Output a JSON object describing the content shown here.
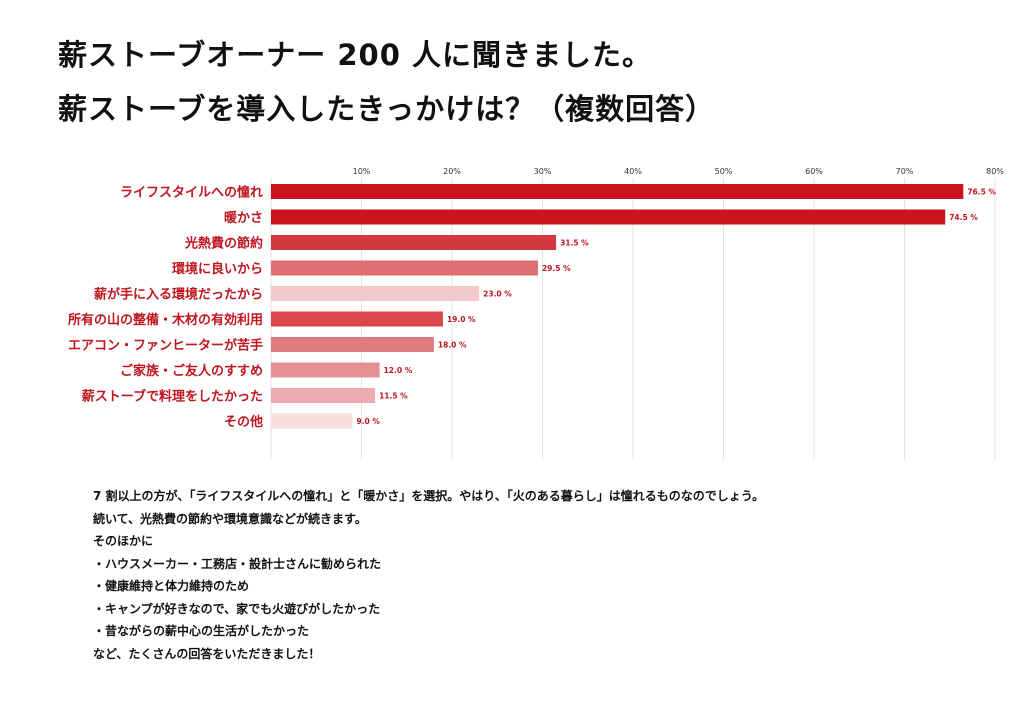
{
  "title": {
    "line1": "薪ストーブオーナー 200 人に聞きました。",
    "line2": "薪ストーブを導入したきっかけは？（複数回答）"
  },
  "chart_data": {
    "type": "bar",
    "orientation": "horizontal",
    "categories": [
      "ライフスタイルへの憧れ",
      "暖かさ",
      "光熱費の節約",
      "環境に良いから",
      "薪が手に入る環境だったから",
      "所有の山の整備・木材の有効利用",
      "エアコン・ファンヒーターが苦手",
      "ご家族・ご友人のすすめ",
      "薪ストーブで料理をしたかった",
      "その他"
    ],
    "values": [
      76.5,
      74.5,
      31.5,
      29.5,
      23.0,
      19.0,
      18.0,
      12.0,
      11.5,
      9.0
    ],
    "value_labels": [
      "76.5 %",
      "74.5 %",
      "31.5 %",
      "29.5 %",
      "23.0 %",
      "19.0 %",
      "18.0 %",
      "12.0 %",
      "11.5 %",
      "9.0 %"
    ],
    "colors": [
      "#c8141e",
      "#c8141e",
      "#d4383f",
      "#de6f73",
      "#f4c7ca",
      "#d9474d",
      "#e07c80",
      "#e69095",
      "#ecabae",
      "#f8dfe0"
    ],
    "xlim": [
      0,
      80
    ],
    "ticks": [
      10,
      20,
      30,
      40,
      50,
      60,
      70,
      80
    ],
    "tick_labels": [
      "10%",
      "20%",
      "30%",
      "40%",
      "50%",
      "60%",
      "70%",
      "80%"
    ],
    "grid": true,
    "xlabel": "",
    "ylabel": ""
  },
  "notes": [
    "7 割以上の方が、「ライフスタイルへの憧れ」と「暖かさ」を選択。やはり、「火のある暮らし」は憧れるものなのでしょう。",
    "続いて、光熱費の節約や環境意識などが続きます。",
    "そのほかに",
    "・ハウスメーカー・工務店・設計士さんに勧められた",
    "・健康維持と体力維持のため",
    "・キャンプが好きなので、家でも火遊びがしたかった",
    "・昔ながらの薪中心の生活がしたかった",
    "など、たくさんの回答をいただきました！"
  ]
}
